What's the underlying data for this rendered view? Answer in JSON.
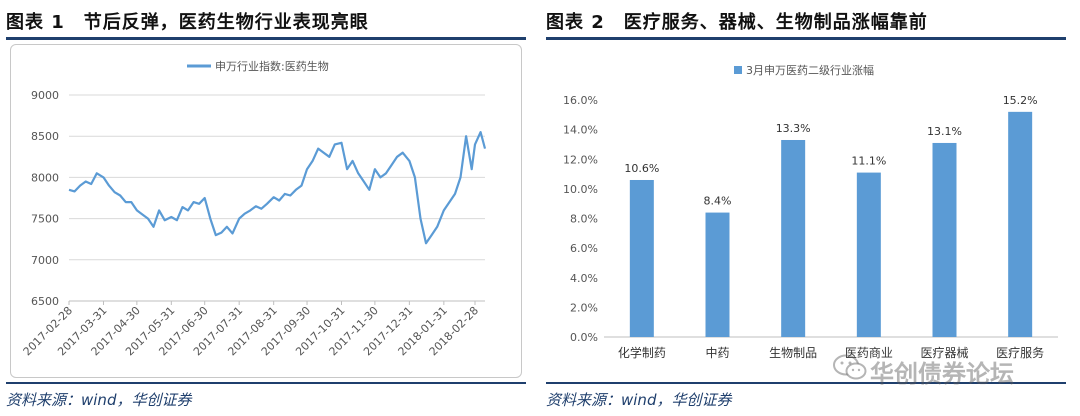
{
  "left_panel": {
    "title": "图表 1　节后反弹，医药生物行业表现亮眼",
    "source": "资料来源：wind，华创证券"
  },
  "right_panel": {
    "title": "图表 2　医疗服务、器械、生物制品涨幅靠前",
    "source": "资料来源：wind，华创证券"
  },
  "watermark": {
    "icon": "wechat-icon",
    "text": "华创债券论坛"
  },
  "colors": {
    "series": "#5b9bd5",
    "rule": "#1f3f6d",
    "grid": "#d9d9d9"
  },
  "chart_data": [
    {
      "type": "line",
      "legend": "申万行业指数:医药生物",
      "legend_position": "top-center",
      "ylim": [
        6500,
        9000
      ],
      "yticks": [
        6500,
        7000,
        7500,
        8000,
        8500,
        9000
      ],
      "xtick_labels": [
        "2017-02-28",
        "2017-03-31",
        "2017-04-30",
        "2017-05-31",
        "2017-06-30",
        "2017-07-31",
        "2017-08-31",
        "2017-09-30",
        "2017-10-31",
        "2017-11-30",
        "2017-12-31",
        "2018-01-31",
        "2018-02-28"
      ],
      "grid": "y",
      "x": [
        "2017-02-28",
        "2017-03-05",
        "2017-03-10",
        "2017-03-15",
        "2017-03-20",
        "2017-03-25",
        "2017-03-31",
        "2017-04-05",
        "2017-04-10",
        "2017-04-15",
        "2017-04-20",
        "2017-04-25",
        "2017-04-30",
        "2017-05-05",
        "2017-05-10",
        "2017-05-15",
        "2017-05-20",
        "2017-05-25",
        "2017-05-31",
        "2017-06-05",
        "2017-06-10",
        "2017-06-15",
        "2017-06-20",
        "2017-06-25",
        "2017-06-30",
        "2017-07-05",
        "2017-07-10",
        "2017-07-15",
        "2017-07-20",
        "2017-07-25",
        "2017-07-31",
        "2017-08-05",
        "2017-08-10",
        "2017-08-15",
        "2017-08-20",
        "2017-08-25",
        "2017-08-31",
        "2017-09-05",
        "2017-09-10",
        "2017-09-15",
        "2017-09-20",
        "2017-09-25",
        "2017-09-30",
        "2017-10-05",
        "2017-10-10",
        "2017-10-15",
        "2017-10-20",
        "2017-10-25",
        "2017-10-31",
        "2017-11-05",
        "2017-11-10",
        "2017-11-15",
        "2017-11-20",
        "2017-11-25",
        "2017-11-30",
        "2017-12-05",
        "2017-12-10",
        "2017-12-15",
        "2017-12-20",
        "2017-12-25",
        "2017-12-31",
        "2018-01-05",
        "2018-01-10",
        "2018-01-15",
        "2018-01-20",
        "2018-01-25",
        "2018-01-31",
        "2018-02-05",
        "2018-02-10",
        "2018-02-15",
        "2018-02-20",
        "2018-02-25",
        "2018-02-28",
        "2018-03-05",
        "2018-03-09"
      ],
      "y": [
        7850,
        7830,
        7900,
        7950,
        7920,
        8050,
        8000,
        7900,
        7820,
        7780,
        7700,
        7700,
        7600,
        7550,
        7500,
        7400,
        7600,
        7480,
        7520,
        7480,
        7640,
        7600,
        7700,
        7680,
        7750,
        7500,
        7300,
        7330,
        7400,
        7320,
        7500,
        7560,
        7600,
        7650,
        7620,
        7680,
        7760,
        7720,
        7800,
        7780,
        7850,
        7900,
        8100,
        8200,
        8350,
        8300,
        8250,
        8400,
        8420,
        8100,
        8200,
        8050,
        7950,
        7850,
        8100,
        8000,
        8050,
        8150,
        8250,
        8300,
        8200,
        8000,
        7500,
        7200,
        7300,
        7400,
        7600,
        7700,
        7800,
        8000,
        8500,
        8100,
        8400,
        8550,
        8350
      ]
    },
    {
      "type": "bar",
      "legend": "3月申万医药二级行业涨幅",
      "legend_position": "top-center",
      "ylim": [
        0,
        16
      ],
      "yticks": [
        0,
        2,
        4,
        6,
        8,
        10,
        12,
        14,
        16
      ],
      "ytick_labels": [
        "0.0%",
        "2.0%",
        "4.0%",
        "6.0%",
        "8.0%",
        "10.0%",
        "12.0%",
        "14.0%",
        "16.0%"
      ],
      "grid": "none",
      "categories": [
        "化学制药",
        "中药",
        "生物制品",
        "医药商业",
        "医疗器械",
        "医疗服务"
      ],
      "values": [
        10.6,
        8.4,
        13.3,
        11.1,
        13.1,
        15.2
      ],
      "data_labels": [
        "10.6%",
        "8.4%",
        "13.3%",
        "11.1%",
        "13.1%",
        "15.2%"
      ]
    }
  ]
}
